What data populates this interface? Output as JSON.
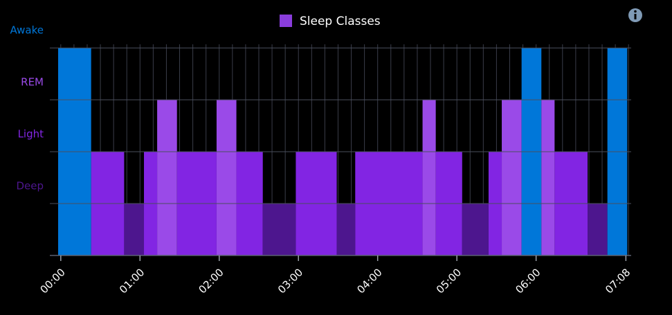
{
  "chart_data": {
    "type": "step-bar",
    "legend": {
      "name": "Sleep Classes",
      "color": "#8a3ddc",
      "position": "top"
    },
    "xlim": [
      -2,
      432
    ],
    "ylim": [
      0,
      4.07
    ],
    "xticks": [
      {
        "value": 0,
        "label": "00:00"
      },
      {
        "value": 60,
        "label": "01:00"
      },
      {
        "value": 120,
        "label": "02:00"
      },
      {
        "value": 180,
        "label": "03:00"
      },
      {
        "value": 240,
        "label": "04:00"
      },
      {
        "value": 300,
        "label": "05:00"
      },
      {
        "value": 360,
        "label": "06:00"
      },
      {
        "value": 428,
        "label": "07:08"
      }
    ],
    "yticks": [
      {
        "value": 1,
        "label": "Deep"
      },
      {
        "value": 2,
        "label": "Light"
      },
      {
        "value": 3,
        "label": "REM"
      },
      {
        "value": 4,
        "label": "Awake"
      }
    ],
    "ytick_colors": [
      "#4d168e",
      "#8225e3",
      "#9a4ae8",
      "#0077d9"
    ],
    "grid": true,
    "x_minor_step": 10,
    "segments": [
      {
        "start": -2,
        "end": 23,
        "level": 4
      },
      {
        "start": 23,
        "end": 48,
        "level": 2
      },
      {
        "start": 48,
        "end": 63,
        "level": 1
      },
      {
        "start": 63,
        "end": 73,
        "level": 2
      },
      {
        "start": 73,
        "end": 88,
        "level": 3
      },
      {
        "start": 88,
        "end": 118,
        "level": 2
      },
      {
        "start": 118,
        "end": 133,
        "level": 3
      },
      {
        "start": 133,
        "end": 153,
        "level": 2
      },
      {
        "start": 153,
        "end": 178,
        "level": 1
      },
      {
        "start": 178,
        "end": 209,
        "level": 2
      },
      {
        "start": 209,
        "end": 223,
        "level": 1
      },
      {
        "start": 223,
        "end": 274,
        "level": 2
      },
      {
        "start": 274,
        "end": 284,
        "level": 3
      },
      {
        "start": 284,
        "end": 304,
        "level": 2
      },
      {
        "start": 304,
        "end": 324,
        "level": 1
      },
      {
        "start": 324,
        "end": 334,
        "level": 2
      },
      {
        "start": 334,
        "end": 349,
        "level": 3
      },
      {
        "start": 349,
        "end": 364,
        "level": 4
      },
      {
        "start": 364,
        "end": 374,
        "level": 3
      },
      {
        "start": 374,
        "end": 399,
        "level": 2
      },
      {
        "start": 399,
        "end": 414,
        "level": 1
      },
      {
        "start": 414,
        "end": 429,
        "level": 4
      }
    ]
  }
}
